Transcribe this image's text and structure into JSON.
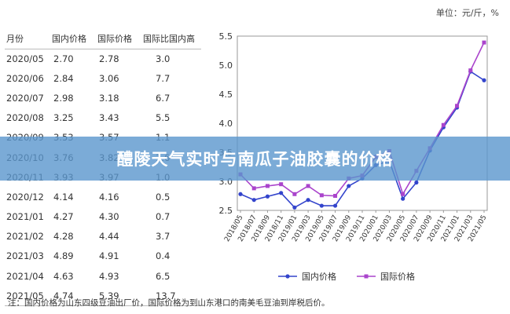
{
  "unit_label": "单位：元/斤，%",
  "table": {
    "headers": [
      "月份",
      "国内价格",
      "国际价格",
      "国际比国内高"
    ],
    "rows": [
      [
        "2020/05",
        "2.70",
        "2.78",
        "3.0"
      ],
      [
        "2020/06",
        "2.84",
        "3.06",
        "7.7"
      ],
      [
        "2020/07",
        "2.98",
        "3.18",
        "6.7"
      ],
      [
        "2020/08",
        "3.25",
        "3.43",
        "5.5"
      ],
      [
        "2020/09",
        "3.53",
        "3.57",
        "1.1"
      ],
      [
        "2020/10",
        "3.76",
        "3.82",
        "1.6"
      ],
      [
        "2020/11",
        "3.93",
        "3.97",
        "1.0"
      ],
      [
        "2020/12",
        "4.14",
        "4.16",
        "0.5"
      ],
      [
        "2021/01",
        "4.27",
        "4.30",
        "0.7"
      ],
      [
        "2021/02",
        "4.28",
        "4.44",
        "3.7"
      ],
      [
        "2021/03",
        "4.89",
        "4.91",
        "0.4"
      ],
      [
        "2021/04",
        "4.63",
        "4.93",
        "6.5"
      ],
      [
        "2021/05",
        "4.74",
        "5.39",
        "13.7"
      ]
    ]
  },
  "chart_data": {
    "type": "line",
    "title": "",
    "xlabel": "",
    "ylabel": "",
    "ylim": [
      2.5,
      5.5
    ],
    "yticks": [
      "2.5",
      "3.0",
      "3.5",
      "4.0",
      "4.5",
      "5.0",
      "5.5"
    ],
    "x": [
      "2018/05",
      "2018/07",
      "2018/09",
      "2018/11",
      "2019/01",
      "2019/03",
      "2019/05",
      "2019/07",
      "2019/09",
      "2019/11",
      "2020/01",
      "2020/03",
      "2020/05",
      "2020/07",
      "2020/09",
      "2020/11",
      "2021/01",
      "2021/03",
      "2021/05"
    ],
    "series": [
      {
        "name": "国内价格",
        "color": "#3344cc",
        "values": [
          2.78,
          2.68,
          2.74,
          2.8,
          2.55,
          2.68,
          2.58,
          2.58,
          2.92,
          3.05,
          3.28,
          3.35,
          2.7,
          2.98,
          3.53,
          3.93,
          4.27,
          4.89,
          4.74
        ]
      },
      {
        "name": "国际价格",
        "color": "#aa44cc",
        "values": [
          3.12,
          2.88,
          2.92,
          2.95,
          2.78,
          2.92,
          2.76,
          2.75,
          3.05,
          3.1,
          3.42,
          3.52,
          2.78,
          3.18,
          3.57,
          3.97,
          4.3,
          4.91,
          5.39
        ]
      }
    ],
    "grid": false,
    "legend_position": "bottom"
  },
  "note": "注：国内价格为山东四级豆油出厂价，国际价格为到山东港口的南美毛豆油到岸税后价。",
  "overlay_title": "醴陵天气实时与南瓜子油胶囊的价格"
}
